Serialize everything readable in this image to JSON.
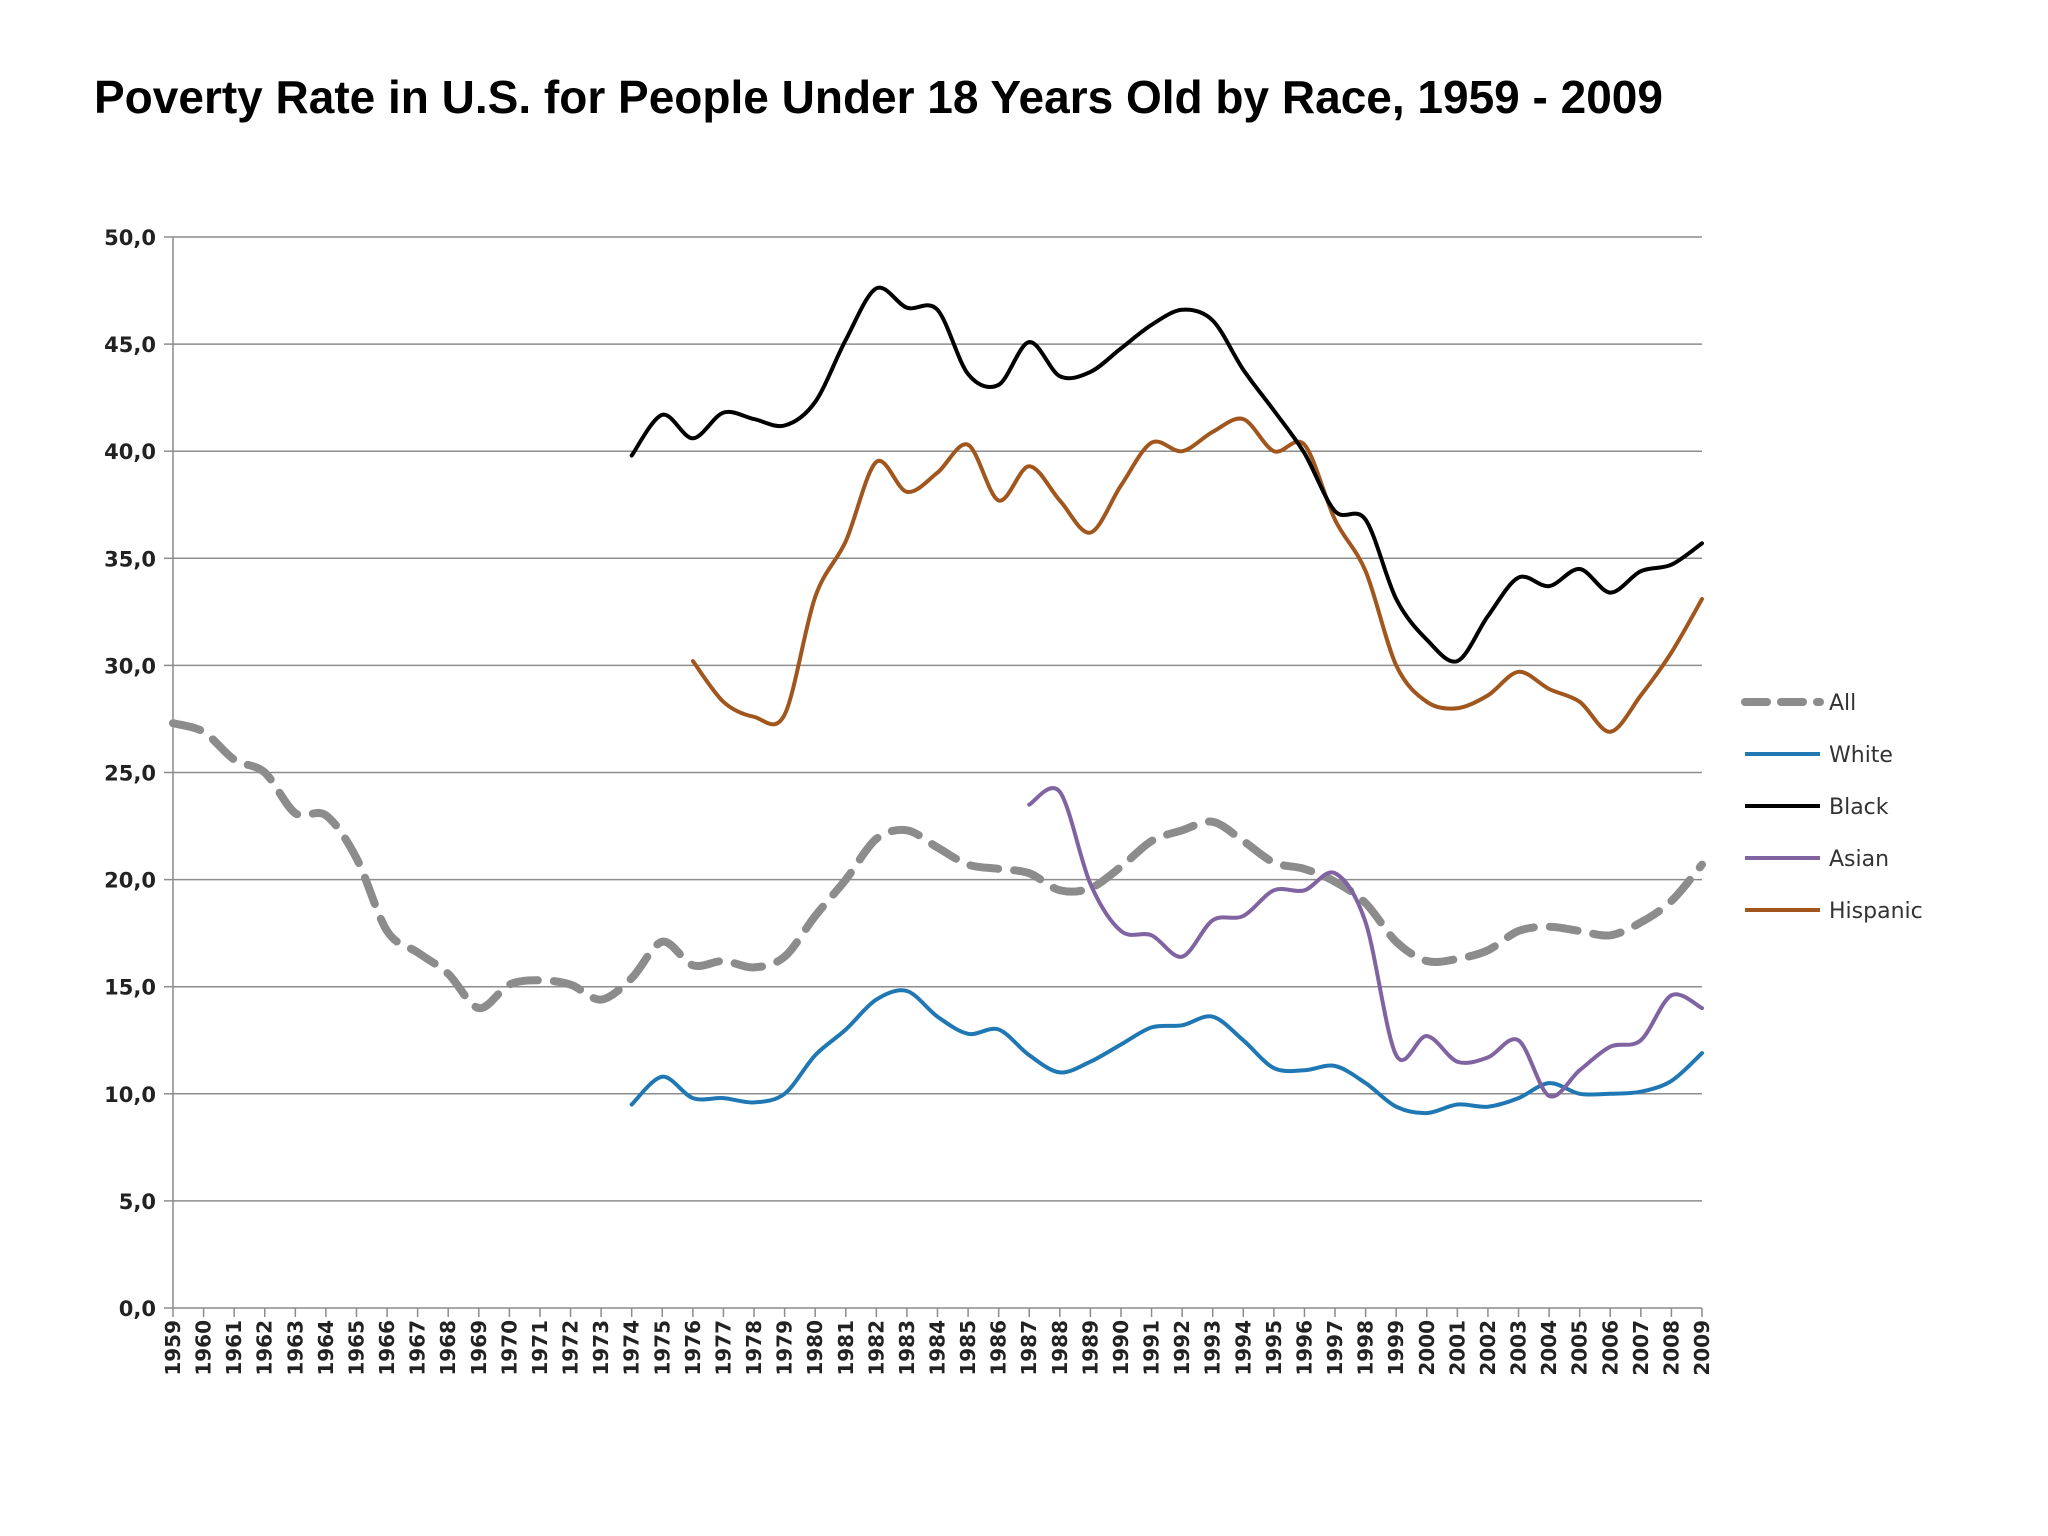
{
  "chart_data": {
    "type": "line",
    "title": "Poverty Rate in U.S. for People Under 18 Years Old by Race, 1959 - 2009",
    "xlabel": "",
    "ylabel": "",
    "ylim": [
      0,
      50
    ],
    "yticks": [
      "0,0",
      "5,0",
      "10,0",
      "15,0",
      "20,0",
      "25,0",
      "30,0",
      "35,0",
      "40,0",
      "45,0",
      "50,0"
    ],
    "grid": true,
    "legend_position": "right",
    "x": [
      1959,
      1960,
      1961,
      1962,
      1963,
      1964,
      1965,
      1966,
      1967,
      1968,
      1969,
      1970,
      1971,
      1972,
      1973,
      1974,
      1975,
      1976,
      1977,
      1978,
      1979,
      1980,
      1981,
      1982,
      1983,
      1984,
      1985,
      1986,
      1987,
      1988,
      1989,
      1990,
      1991,
      1992,
      1993,
      1994,
      1995,
      1996,
      1997,
      1998,
      1999,
      2000,
      2001,
      2002,
      2003,
      2004,
      2005,
      2006,
      2007,
      2008,
      2009
    ],
    "series": [
      {
        "name": "All",
        "color": "#8c8c8c",
        "dash": "dashed",
        "values": [
          27.3,
          26.9,
          25.6,
          25.0,
          23.1,
          23.0,
          21.0,
          17.6,
          16.6,
          15.6,
          14.0,
          15.1,
          15.3,
          15.1,
          14.4,
          15.4,
          17.1,
          16.0,
          16.2,
          15.9,
          16.4,
          18.3,
          20.0,
          21.9,
          22.3,
          21.5,
          20.7,
          20.5,
          20.3,
          19.5,
          19.6,
          20.6,
          21.8,
          22.3,
          22.7,
          21.8,
          20.8,
          20.5,
          19.9,
          18.9,
          17.1,
          16.2,
          16.3,
          16.7,
          17.6,
          17.8,
          17.6,
          17.4,
          18.0,
          19.0,
          20.7
        ]
      },
      {
        "name": "White",
        "color": "#1f77b4",
        "dash": "solid",
        "values": [
          null,
          null,
          null,
          null,
          null,
          null,
          null,
          null,
          null,
          null,
          null,
          null,
          null,
          null,
          null,
          9.5,
          10.8,
          9.8,
          9.8,
          9.6,
          10.0,
          11.8,
          13.0,
          14.4,
          14.8,
          13.6,
          12.8,
          13.0,
          11.8,
          11.0,
          11.5,
          12.3,
          13.1,
          13.2,
          13.6,
          12.5,
          11.2,
          11.1,
          11.3,
          10.5,
          9.4,
          9.1,
          9.5,
          9.4,
          9.8,
          10.5,
          10.0,
          10.0,
          10.1,
          10.6,
          11.9
        ]
      },
      {
        "name": "Black",
        "color": "#000000",
        "dash": "solid",
        "values": [
          null,
          null,
          null,
          null,
          null,
          null,
          null,
          null,
          null,
          null,
          null,
          null,
          null,
          null,
          null,
          39.8,
          41.7,
          40.6,
          41.8,
          41.5,
          41.2,
          42.3,
          45.2,
          47.6,
          46.7,
          46.6,
          43.6,
          43.1,
          45.1,
          43.5,
          43.7,
          44.8,
          45.9,
          46.6,
          46.1,
          43.8,
          41.9,
          39.9,
          37.2,
          36.8,
          33.1,
          31.2,
          30.2,
          32.3,
          34.1,
          33.7,
          34.5,
          33.4,
          34.4,
          34.7,
          35.7
        ]
      },
      {
        "name": "Asian",
        "color": "#8064a2",
        "dash": "solid",
        "values": [
          null,
          null,
          null,
          null,
          null,
          null,
          null,
          null,
          null,
          null,
          null,
          null,
          null,
          null,
          null,
          null,
          null,
          null,
          null,
          null,
          null,
          null,
          null,
          null,
          null,
          null,
          null,
          null,
          23.5,
          24.1,
          19.8,
          17.6,
          17.4,
          16.4,
          18.1,
          18.3,
          19.5,
          19.5,
          20.3,
          18.0,
          11.8,
          12.7,
          11.5,
          11.7,
          12.5,
          9.9,
          11.1,
          12.2,
          12.5,
          14.6,
          14.0
        ]
      },
      {
        "name": "Hispanic",
        "color": "#a0561c",
        "dash": "solid",
        "values": [
          null,
          null,
          null,
          null,
          null,
          null,
          null,
          null,
          null,
          null,
          null,
          null,
          null,
          null,
          null,
          null,
          null,
          30.2,
          28.3,
          27.6,
          27.7,
          33.2,
          35.8,
          39.5,
          38.1,
          39.0,
          40.3,
          37.7,
          39.3,
          37.7,
          36.2,
          38.4,
          40.4,
          40.0,
          40.9,
          41.5,
          40.0,
          40.3,
          36.8,
          34.4,
          30.0,
          28.3,
          28.0,
          28.6,
          29.7,
          28.9,
          28.3,
          26.9,
          28.6,
          30.6,
          33.1
        ]
      }
    ]
  }
}
